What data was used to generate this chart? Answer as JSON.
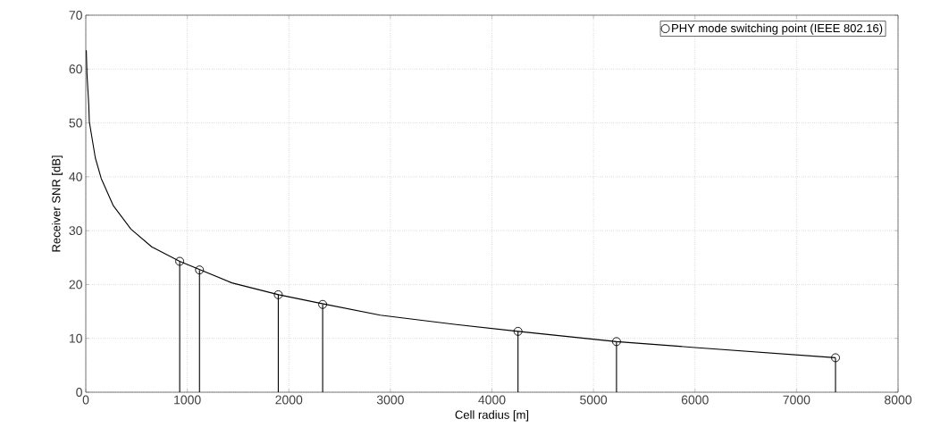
{
  "chart_data": {
    "type": "line",
    "xlabel": "Cell radius [m]",
    "ylabel": "Receiver SNR [dB]",
    "xlim": [
      0,
      8000
    ],
    "xticks": [
      0,
      1000,
      2000,
      3000,
      4000,
      5000,
      6000,
      7000,
      8000
    ],
    "ylim": [
      0,
      70
    ],
    "yticks": [
      0,
      10,
      20,
      30,
      40,
      50,
      60,
      70
    ],
    "grid": true,
    "legend": "top right",
    "series": [
      {
        "color": "#000000",
        "marker": "none",
        "x": [
          5,
          12,
          29,
          35,
          94,
          152,
          269,
          444,
          649,
          925,
          1439,
          1900,
          2339,
          2900,
          3630,
          4257,
          5227,
          6000,
          7384
        ],
        "values": [
          63.5,
          59,
          53.5,
          50.2,
          43.5,
          39.7,
          34.7,
          30.3,
          27,
          24.3,
          20.3,
          18.1,
          16.4,
          14.3,
          12.6,
          11.3,
          9.4,
          8.3,
          6.4
        ]
      },
      {
        "type": "lollipop",
        "name": "PHY mode switching point (IEEE 802.16)",
        "color": "#000000",
        "marker": "circle",
        "x": [
          925,
          1120,
          1896,
          2333,
          4257,
          5227,
          7384
        ],
        "values": [
          24.3,
          22.7,
          18.1,
          16.3,
          11.3,
          9.4,
          6.4
        ]
      }
    ]
  }
}
